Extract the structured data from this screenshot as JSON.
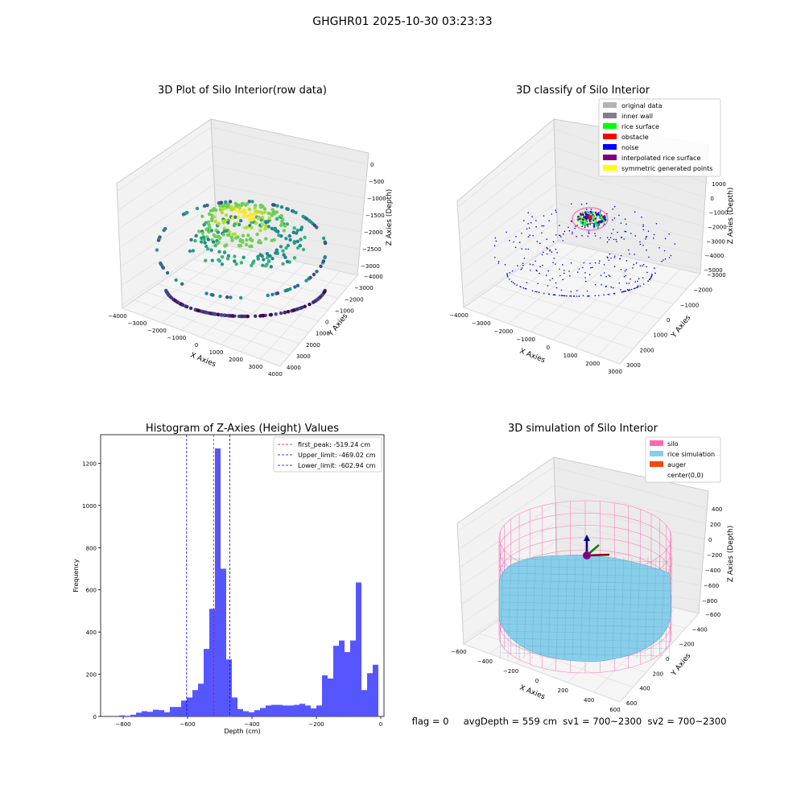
{
  "figure": {
    "suptitle": "GHGHR01 2025-10-30 03:23:33",
    "status_line": "flag = 0     avgDepth = 559 cm  sv1 = 700~2300  sv2 = 700~2300"
  },
  "chart_data": [
    {
      "type": "scatter3d",
      "title": "3D Plot of Silo Interior(row data)",
      "xlabel": "X Axies",
      "ylabel": "Y Axies",
      "zlabel": "Z Axies (Depth)",
      "xticks": [
        "−4000",
        "−3000",
        "−2000",
        "−1000",
        "0",
        "1000",
        "2000",
        "3000",
        "4000"
      ],
      "yticks": [
        "−4000",
        "−3000",
        "−2000",
        "−1000",
        "0",
        "1000",
        "2000",
        "3000",
        "4000"
      ],
      "zticks": [
        "0",
        "−500",
        "−1000",
        "−1500",
        "−2000",
        "−2500",
        "−3000"
      ],
      "colormap": "viridis"
    },
    {
      "type": "scatter3d",
      "title": "3D classify of Silo Interior",
      "xlabel": "X Axies",
      "ylabel": "Y Axies",
      "zlabel": "Z Axies (Depth)",
      "xticks": [
        "−4000",
        "−3000",
        "−2000",
        "−1000",
        "0",
        "1000",
        "2000",
        "3000"
      ],
      "yticks": [
        "−3000",
        "−2000",
        "−1000",
        "0",
        "1000",
        "2000",
        "3000"
      ],
      "zticks": [
        "1000",
        "0",
        "−1000",
        "−2000",
        "−3000",
        "−4000",
        "−5000"
      ],
      "legend_position": "top-right",
      "legend": [
        {
          "label": "original data",
          "color": "#b3b3b3"
        },
        {
          "label": "inner wall",
          "color": "#808080"
        },
        {
          "label": "rice surface",
          "color": "#00ff00"
        },
        {
          "label": "obstacle",
          "color": "#ff0000"
        },
        {
          "label": "noise",
          "color": "#0000ff"
        },
        {
          "label": "interpolated rice surface",
          "color": "#800080"
        },
        {
          "label": "symmetric generated points",
          "color": "#ffff00"
        }
      ]
    },
    {
      "type": "bar",
      "title": "Histogram of Z-Axies (Height) Values",
      "xlabel": "Depth (cm)",
      "ylabel": "Frequency",
      "xlim": [
        -870,
        10
      ],
      "ylim": [
        0,
        1335
      ],
      "xticks": [
        -800,
        -600,
        -400,
        -200,
        0
      ],
      "xtick_labels": [
        "−800",
        "−600",
        "−400",
        "−200",
        "0"
      ],
      "yticks": [
        0,
        200,
        400,
        600,
        800,
        1000,
        1200
      ],
      "bar_color": "#4d4dff",
      "bin_width": 17.5,
      "bins_start": [
        -812.5,
        -795,
        -777.5,
        -760,
        -742.5,
        -725,
        -707.5,
        -690,
        -672.5,
        -655,
        -637.5,
        -620,
        -602.5,
        -585,
        -567.5,
        -550,
        -532.5,
        -515,
        -497.5,
        -480,
        -462.5,
        -445,
        -427.5,
        -410,
        -392.5,
        -375,
        -357.5,
        -340,
        -322.5,
        -305,
        -287.5,
        -270,
        -252.5,
        -235,
        -217.5,
        -200,
        -182.5,
        -165,
        -147.5,
        -130,
        -112.5,
        -95,
        -77.5,
        -60,
        -42.5,
        -25,
        -7.5
      ],
      "values": [
        5,
        3,
        8,
        18,
        25,
        22,
        32,
        30,
        20,
        45,
        45,
        75,
        90,
        125,
        155,
        320,
        510,
        1270,
        700,
        270,
        90,
        35,
        25,
        20,
        30,
        40,
        52,
        55,
        55,
        52,
        52,
        55,
        60,
        52,
        38,
        52,
        195,
        180,
        335,
        360,
        305,
        360,
        635,
        125,
        205,
        245,
        0
      ],
      "vlines": [
        {
          "x": -519.24,
          "label": "first_peak: -519.24 cm",
          "color": "#ff0000"
        },
        {
          "x": -469.02,
          "label": "Upper_limit: -469.02 cm",
          "color": "#0000ff"
        },
        {
          "x": -602.94,
          "label": "Lower_limit: -602.94 cm",
          "color": "#0000ff"
        }
      ],
      "legend_position": "top-right"
    },
    {
      "type": "surface3d",
      "title": "3D simulation of Silo Interior",
      "xlabel": "X Axies",
      "ylabel": "Y Axies",
      "zlabel": "Z Axies (Depth)",
      "xticks": [
        "−600",
        "−400",
        "−200",
        "0",
        "200",
        "400",
        "600"
      ],
      "yticks": [
        "−600",
        "−400",
        "−200",
        "0",
        "200",
        "400",
        "600"
      ],
      "zticks": [
        "400",
        "200",
        "0",
        "−200",
        "−400",
        "−600",
        "−800"
      ],
      "legend_position": "top-right",
      "legend": [
        {
          "label": "silo",
          "color": "#ff69b4"
        },
        {
          "label": "rice simulation",
          "color": "#87ceeb"
        },
        {
          "label": "auger",
          "color": "#ff4500"
        },
        {
          "label": "center(0,0)",
          "color": "#ffffff"
        }
      ]
    }
  ]
}
